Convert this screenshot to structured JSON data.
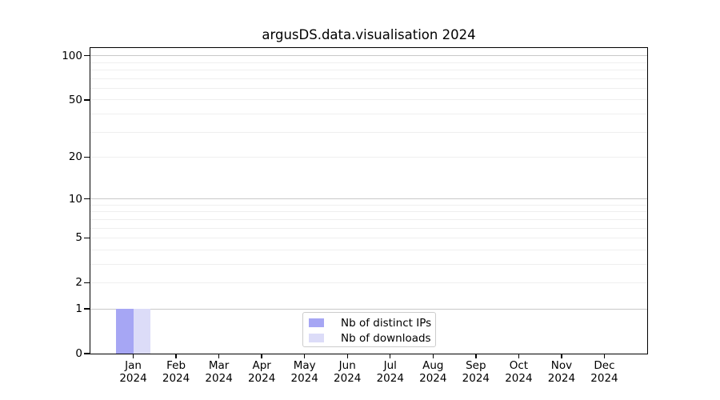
{
  "chart_data": {
    "type": "bar",
    "title": "argusDS.data.visualisation 2024",
    "x": {
      "categories": [
        "Jan",
        "Feb",
        "Mar",
        "Apr",
        "May",
        "Jun",
        "Jul",
        "Aug",
        "Sep",
        "Oct",
        "Nov",
        "Dec"
      ],
      "year": "2024"
    },
    "y": {
      "scale": "log1p",
      "range": [
        0,
        113
      ],
      "tick_labels": [
        0,
        1,
        2,
        5,
        10,
        20,
        50,
        100
      ],
      "major_gridlines": [
        1,
        10,
        100
      ],
      "minor_gridlines": [
        2,
        3,
        4,
        5,
        6,
        7,
        8,
        9,
        20,
        30,
        40,
        50,
        60,
        70,
        80,
        90
      ],
      "major_grid_color": "#c9c9c9",
      "minor_grid_color": "#efefef"
    },
    "series": [
      {
        "name": "Nb of distinct IPs",
        "color": "#a6a6f4",
        "values": [
          1,
          0,
          0,
          0,
          0,
          0,
          0,
          0,
          0,
          0,
          0,
          0
        ]
      },
      {
        "name": "Nb of downloads",
        "color": "#dcdcf8",
        "values": [
          1,
          0,
          0,
          0,
          0,
          0,
          0,
          0,
          0,
          0,
          0,
          0
        ]
      }
    ],
    "legend": {
      "position": "lower center"
    },
    "bar_width_fraction": 0.4
  }
}
